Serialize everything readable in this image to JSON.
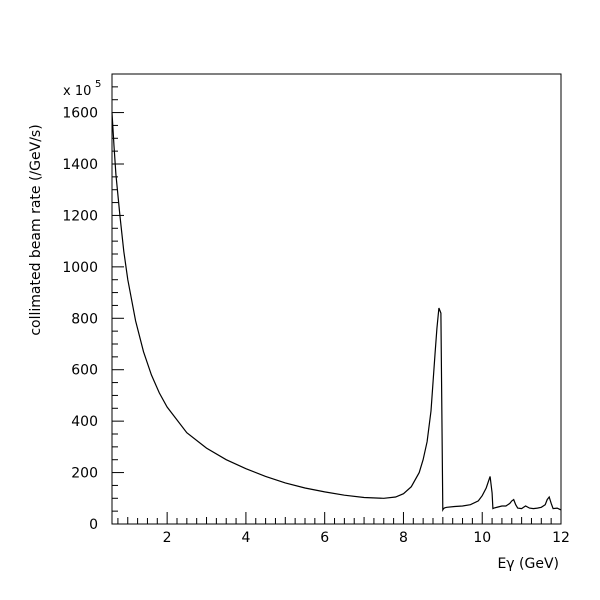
{
  "chart_data": {
    "type": "line",
    "title": "",
    "xlabel": "Eγ (GeV)",
    "ylabel": "collimated beam rate (/GeV/s)",
    "y_multiplier": {
      "prefix": "x 10",
      "exponent": "5"
    },
    "xlim": [
      0.6,
      12
    ],
    "ylim": [
      0,
      1750
    ],
    "x_ticks": [
      {
        "value": 2,
        "label": "2"
      },
      {
        "value": 4,
        "label": "4"
      },
      {
        "value": 6,
        "label": "6"
      },
      {
        "value": 8,
        "label": "8"
      },
      {
        "value": 10,
        "label": "10"
      },
      {
        "value": 12,
        "label": "12"
      }
    ],
    "y_ticks": [
      {
        "value": 0,
        "label": "0"
      },
      {
        "value": 200,
        "label": "200"
      },
      {
        "value": 400,
        "label": "400"
      },
      {
        "value": 600,
        "label": "600"
      },
      {
        "value": 800,
        "label": "800"
      },
      {
        "value": 1000,
        "label": "1000"
      },
      {
        "value": 1200,
        "label": "1200"
      },
      {
        "value": 1400,
        "label": "1400"
      },
      {
        "value": 1600,
        "label": "1600"
      }
    ],
    "grid": false,
    "series": [
      {
        "x": [
          0.6,
          0.65,
          0.7,
          0.8,
          0.9,
          1.0,
          1.2,
          1.4,
          1.6,
          1.8,
          2.0,
          2.5,
          3.0,
          3.5,
          4.0,
          4.5,
          5.0,
          5.5,
          6.0,
          6.5,
          7.0,
          7.5,
          7.8,
          8.0,
          8.2,
          8.4,
          8.5,
          8.6,
          8.7,
          8.8,
          8.85,
          8.9,
          8.95,
          9.0,
          9.02,
          9.05,
          9.1,
          9.3,
          9.5,
          9.7,
          9.9,
          10.0,
          10.1,
          10.2,
          10.25,
          10.27,
          10.3,
          10.4,
          10.5,
          10.6,
          10.7,
          10.75,
          10.8,
          10.85,
          10.9,
          11.0,
          11.05,
          11.1,
          11.2,
          11.3,
          11.4,
          11.5,
          11.6,
          11.65,
          11.7,
          11.75,
          11.8,
          11.9,
          12.0
        ],
        "y": [
          1600,
          1470,
          1360,
          1200,
          1060,
          950,
          790,
          670,
          580,
          510,
          455,
          355,
          295,
          250,
          215,
          185,
          160,
          140,
          125,
          112,
          103,
          100,
          105,
          118,
          145,
          200,
          250,
          320,
          440,
          660,
          760,
          840,
          820,
          55,
          60,
          63,
          65,
          68,
          70,
          75,
          90,
          110,
          140,
          185,
          120,
          60,
          62,
          66,
          70,
          70,
          80,
          90,
          95,
          75,
          62,
          60,
          65,
          70,
          62,
          60,
          62,
          65,
          75,
          95,
          105,
          80,
          60,
          62,
          55
        ]
      }
    ]
  }
}
